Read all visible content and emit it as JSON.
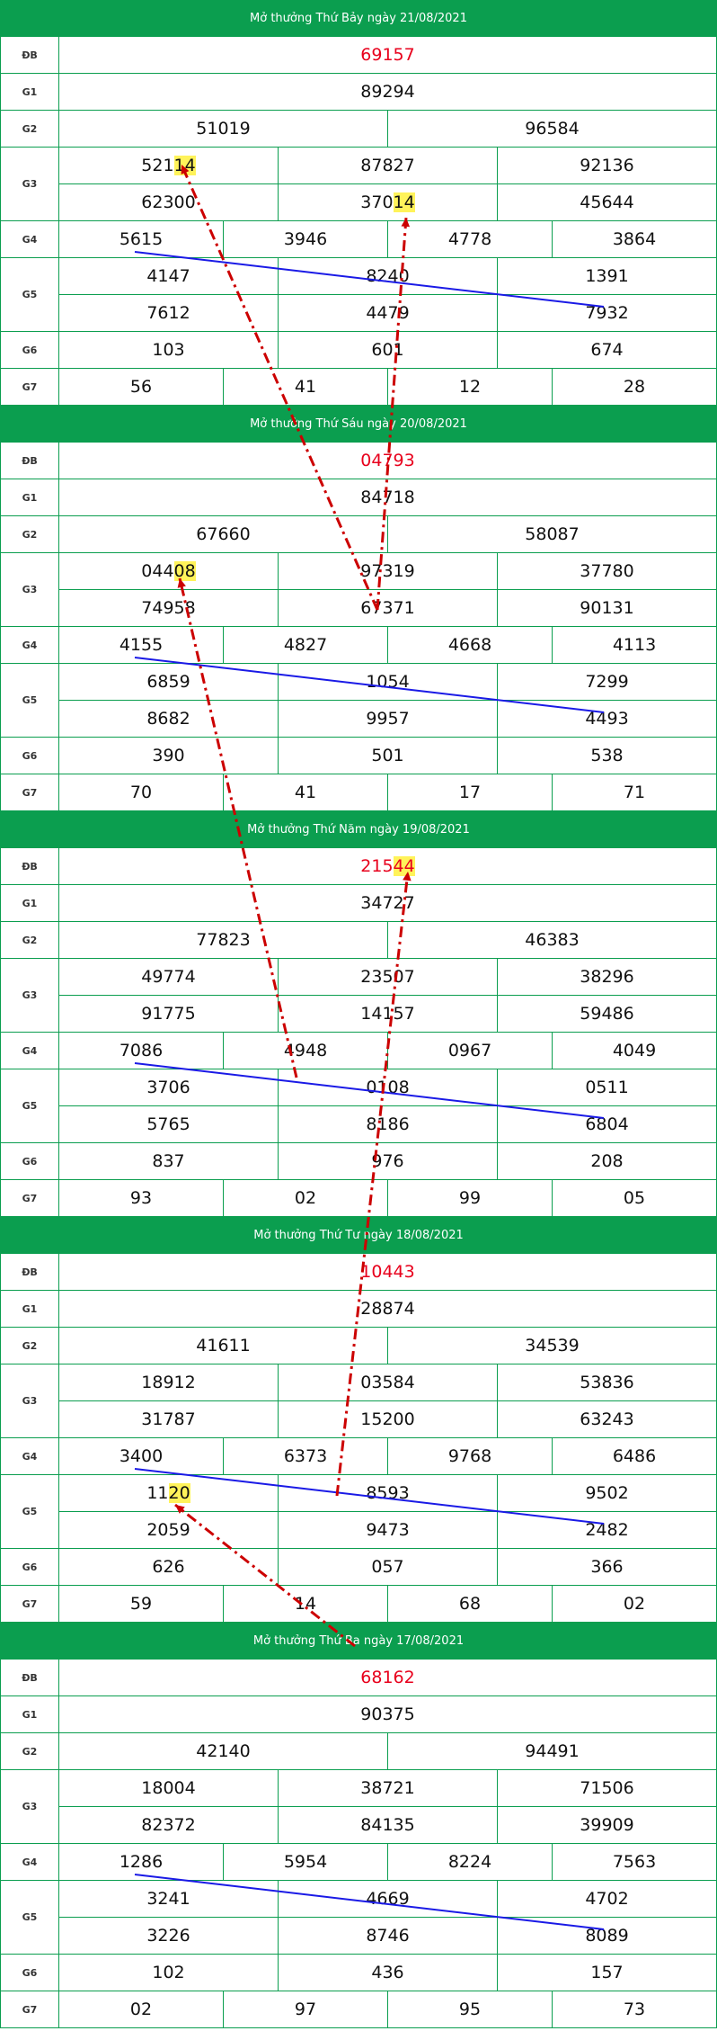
{
  "colors": {
    "header_bg": "#0b9e4f",
    "special_prize": "#e8001c",
    "highlight": "#fff35a",
    "blue_line": "#1a1ae6",
    "red_arrow": "#cc0000"
  },
  "draws": [
    {
      "title": "Mở thưởng Thứ Bảy ngày 21/08/2021",
      "prizes": [
        {
          "label": "ĐB",
          "values": [
            [
              "69157"
            ]
          ]
        },
        {
          "label": "G1",
          "values": [
            [
              "89294"
            ]
          ]
        },
        {
          "label": "G2",
          "values": [
            [
              "51019",
              "96584"
            ]
          ]
        },
        {
          "label": "G3",
          "values": [
            [
              "52114",
              "87827",
              "92136"
            ],
            [
              "62300",
              "37014",
              "45644"
            ]
          ]
        },
        {
          "label": "G4",
          "values": [
            [
              "5615",
              "3946",
              "4778",
              "3864"
            ]
          ]
        },
        {
          "label": "G5",
          "values": [
            [
              "4147",
              "8240",
              "1391"
            ],
            [
              "7612",
              "4479",
              "7932"
            ]
          ]
        },
        {
          "label": "G6",
          "values": [
            [
              "103",
              "601",
              "674"
            ]
          ]
        },
        {
          "label": "G7",
          "values": [
            [
              "56",
              "41",
              "12",
              "28"
            ]
          ]
        }
      ]
    },
    {
      "title": "Mở thưởng Thứ Sáu ngày 20/08/2021",
      "prizes": [
        {
          "label": "ĐB",
          "values": [
            [
              "04793"
            ]
          ]
        },
        {
          "label": "G1",
          "values": [
            [
              "84718"
            ]
          ]
        },
        {
          "label": "G2",
          "values": [
            [
              "67660",
              "58087"
            ]
          ]
        },
        {
          "label": "G3",
          "values": [
            [
              "04408",
              "97319",
              "37780"
            ],
            [
              "74958",
              "67371",
              "90131"
            ]
          ]
        },
        {
          "label": "G4",
          "values": [
            [
              "4155",
              "4827",
              "4668",
              "4113"
            ]
          ]
        },
        {
          "label": "G5",
          "values": [
            [
              "6859",
              "1054",
              "7299"
            ],
            [
              "8682",
              "9957",
              "4493"
            ]
          ]
        },
        {
          "label": "G6",
          "values": [
            [
              "390",
              "501",
              "538"
            ]
          ]
        },
        {
          "label": "G7",
          "values": [
            [
              "70",
              "41",
              "17",
              "71"
            ]
          ]
        }
      ]
    },
    {
      "title": "Mở thưởng Thứ Năm ngày 19/08/2021",
      "prizes": [
        {
          "label": "ĐB",
          "values": [
            [
              "21544"
            ]
          ]
        },
        {
          "label": "G1",
          "values": [
            [
              "34727"
            ]
          ]
        },
        {
          "label": "G2",
          "values": [
            [
              "77823",
              "46383"
            ]
          ]
        },
        {
          "label": "G3",
          "values": [
            [
              "49774",
              "23507",
              "38296"
            ],
            [
              "91775",
              "14157",
              "59486"
            ]
          ]
        },
        {
          "label": "G4",
          "values": [
            [
              "7086",
              "4948",
              "0967",
              "4049"
            ]
          ]
        },
        {
          "label": "G5",
          "values": [
            [
              "3706",
              "0108",
              "0511"
            ],
            [
              "5765",
              "8186",
              "6804"
            ]
          ]
        },
        {
          "label": "G6",
          "values": [
            [
              "837",
              "976",
              "208"
            ]
          ]
        },
        {
          "label": "G7",
          "values": [
            [
              "93",
              "02",
              "99",
              "05"
            ]
          ]
        }
      ]
    },
    {
      "title": "Mở thưởng Thứ Tư ngày 18/08/2021",
      "prizes": [
        {
          "label": "ĐB",
          "values": [
            [
              "10443"
            ]
          ]
        },
        {
          "label": "G1",
          "values": [
            [
              "28874"
            ]
          ]
        },
        {
          "label": "G2",
          "values": [
            [
              "41611",
              "34539"
            ]
          ]
        },
        {
          "label": "G3",
          "values": [
            [
              "18912",
              "03584",
              "53836"
            ],
            [
              "31787",
              "15200",
              "63243"
            ]
          ]
        },
        {
          "label": "G4",
          "values": [
            [
              "3400",
              "6373",
              "9768",
              "6486"
            ]
          ]
        },
        {
          "label": "G5",
          "values": [
            [
              "1120",
              "8593",
              "9502"
            ],
            [
              "2059",
              "9473",
              "2482"
            ]
          ]
        },
        {
          "label": "G6",
          "values": [
            [
              "626",
              "057",
              "366"
            ]
          ]
        },
        {
          "label": "G7",
          "values": [
            [
              "59",
              "14",
              "68",
              "02"
            ]
          ]
        }
      ]
    },
    {
      "title": "Mở thưởng Thứ Ba ngày 17/08/2021",
      "prizes": [
        {
          "label": "ĐB",
          "values": [
            [
              "68162"
            ]
          ]
        },
        {
          "label": "G1",
          "values": [
            [
              "90375"
            ]
          ]
        },
        {
          "label": "G2",
          "values": [
            [
              "42140",
              "94491"
            ]
          ]
        },
        {
          "label": "G3",
          "values": [
            [
              "18004",
              "38721",
              "71506"
            ],
            [
              "82372",
              "84135",
              "39909"
            ]
          ]
        },
        {
          "label": "G4",
          "values": [
            [
              "1286",
              "5954",
              "8224",
              "7563"
            ]
          ]
        },
        {
          "label": "G5",
          "values": [
            [
              "3241",
              "4669",
              "4702"
            ],
            [
              "3226",
              "8746",
              "8089"
            ]
          ]
        },
        {
          "label": "G6",
          "values": [
            [
              "102",
              "436",
              "157"
            ]
          ]
        },
        {
          "label": "G7",
          "values": [
            [
              "02",
              "97",
              "95",
              "73"
            ]
          ]
        }
      ]
    }
  ],
  "highlights": [
    {
      "draw": 0,
      "prize": "G3",
      "row": 0,
      "col": 0,
      "digits": "14"
    },
    {
      "draw": 0,
      "prize": "G3",
      "row": 1,
      "col": 1,
      "digits": "14"
    },
    {
      "draw": 1,
      "prize": "G3",
      "row": 0,
      "col": 0,
      "digits": "08"
    },
    {
      "draw": 2,
      "prize": "ĐB",
      "row": 0,
      "col": 0,
      "digits": "44"
    },
    {
      "draw": 3,
      "prize": "G5",
      "row": 0,
      "col": 0,
      "digits": "20"
    }
  ]
}
